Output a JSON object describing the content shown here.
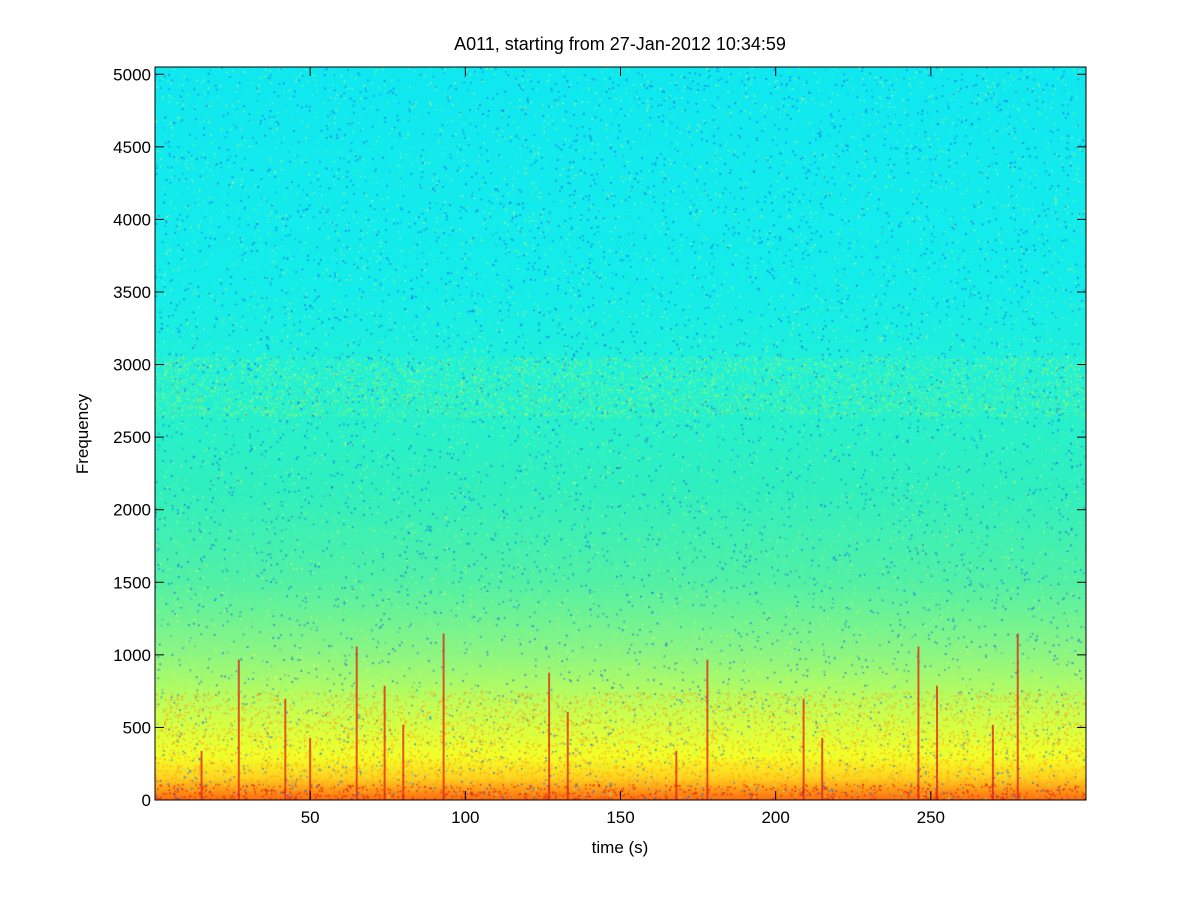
{
  "chart_data": {
    "type": "heatmap",
    "title": "A011, starting from 27-Jan-2012 10:34:59",
    "xlabel": "time (s)",
    "ylabel": "Frequency",
    "xlim": [
      0,
      300
    ],
    "ylim": [
      0,
      5050
    ],
    "x_ticks": [
      50,
      100,
      150,
      200,
      250
    ],
    "y_ticks": [
      0,
      500,
      1000,
      1500,
      2000,
      2500,
      3000,
      3500,
      4000,
      4500,
      5000
    ],
    "grid": false,
    "legend": "none",
    "colormap": "jet",
    "colors": {
      "low_intensity": "#10e8f0",
      "mid_intensity": "#50f0a6",
      "high_intensity": "#f2ff28",
      "peak_intensity": "#e0201a"
    },
    "features": {
      "strong_band_max_frequency": 750,
      "mid_band_center_frequency": 2850,
      "transient_times": [
        15,
        27,
        42,
        50,
        65,
        74,
        80,
        93,
        127,
        133,
        168,
        178,
        209,
        215,
        246,
        252,
        270,
        278
      ]
    }
  }
}
